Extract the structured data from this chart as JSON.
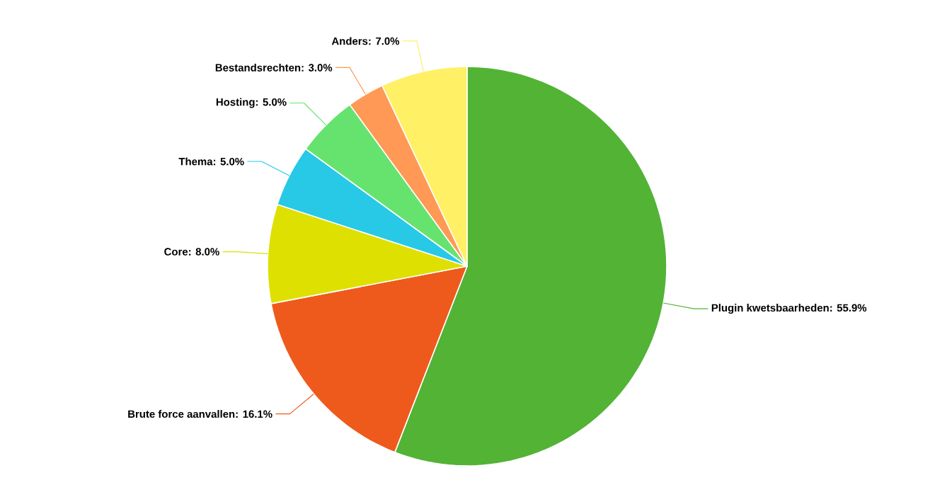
{
  "chart_data": {
    "type": "pie",
    "categories": [
      "Plugin kwetsbaarheden",
      "Brute force aanvallen",
      "Core",
      "Thema",
      "Hosting",
      "Bestandsrechten",
      "Anders"
    ],
    "values": [
      55.9,
      16.1,
      8.0,
      5.0,
      5.0,
      3.0,
      7.0
    ],
    "colors": [
      "#52b335",
      "#ee5a1c",
      "#dde000",
      "#27c9e6",
      "#66e36e",
      "#ff9955",
      "#fff066"
    ],
    "value_labels": [
      ": 55.9%",
      ": 16.1%",
      ": 8.0%",
      ": 5.0%",
      ": 5.0%",
      ": 3.0%",
      ": 7.0%"
    ]
  }
}
